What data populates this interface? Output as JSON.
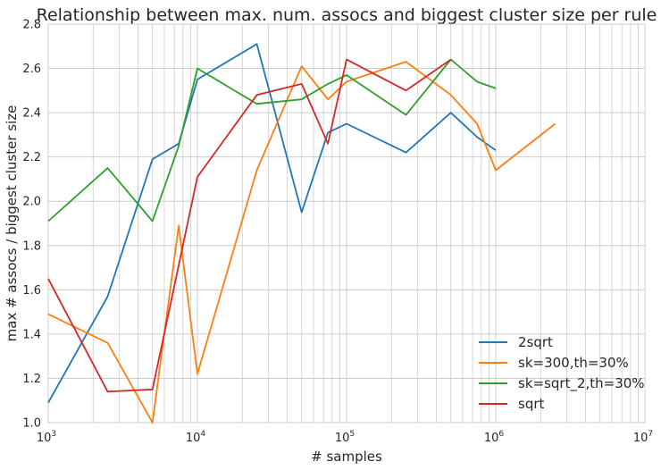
{
  "chart_data": {
    "type": "line",
    "title": "Relationship between max. num. assocs and biggest cluster size per rule",
    "xlabel": "# samples",
    "ylabel": "max # assocs / biggest cluster size",
    "xscale": "log",
    "xlim": [
      1000,
      10000000
    ],
    "ylim": [
      1.0,
      2.8
    ],
    "grid": true,
    "legend_position": "lower-right",
    "x_ticks": [
      1000,
      10000,
      100000,
      1000000,
      10000000
    ],
    "x_tick_labels": [
      {
        "base": "10",
        "exp": "3"
      },
      {
        "base": "10",
        "exp": "4"
      },
      {
        "base": "10",
        "exp": "5"
      },
      {
        "base": "10",
        "exp": "6"
      },
      {
        "base": "10",
        "exp": "7"
      }
    ],
    "y_ticks": [
      1.0,
      1.2,
      1.4,
      1.6,
      1.8,
      2.0,
      2.2,
      2.4,
      2.6,
      2.8
    ],
    "y_tick_labels": [
      "1.0",
      "1.2",
      "1.4",
      "1.6",
      "1.8",
      "2.0",
      "2.2",
      "2.4",
      "2.6",
      "2.8"
    ],
    "series": [
      {
        "name": "2sqrt",
        "color": "#1f77b4",
        "x": [
          1000,
          2500,
          5000,
          7500,
          10000,
          25000,
          50000,
          75000,
          100000,
          250000,
          500000,
          750000,
          1000000
        ],
        "y": [
          1.09,
          1.57,
          2.19,
          2.26,
          2.55,
          2.71,
          1.95,
          2.31,
          2.35,
          2.22,
          2.4,
          2.29,
          2.23
        ]
      },
      {
        "name": "sk=300,th=30%",
        "color": "#ff7f0e",
        "x": [
          1000,
          2500,
          5000,
          7500,
          10000,
          25000,
          50000,
          75000,
          100000,
          250000,
          500000,
          750000,
          1000000,
          2500000
        ],
        "y": [
          1.49,
          1.36,
          1.0,
          1.89,
          1.22,
          2.14,
          2.61,
          2.46,
          2.54,
          2.63,
          2.48,
          2.35,
          2.14,
          2.35
        ]
      },
      {
        "name": "sk=sqrt_2,th=30%",
        "color": "#2ca02c",
        "x": [
          1000,
          2500,
          5000,
          7500,
          10000,
          25000,
          50000,
          75000,
          100000,
          250000,
          500000,
          750000,
          1000000
        ],
        "y": [
          1.91,
          2.15,
          1.91,
          2.25,
          2.6,
          2.44,
          2.46,
          2.53,
          2.57,
          2.39,
          2.64,
          2.54,
          2.51
        ]
      },
      {
        "name": "sqrt",
        "color": "#d62728",
        "x": [
          1000,
          2500,
          5000,
          10000,
          25000,
          50000,
          75000,
          100000,
          250000,
          500000
        ],
        "y": [
          1.65,
          1.14,
          1.15,
          2.11,
          2.48,
          2.53,
          2.26,
          2.64,
          2.5,
          2.64
        ]
      }
    ]
  }
}
